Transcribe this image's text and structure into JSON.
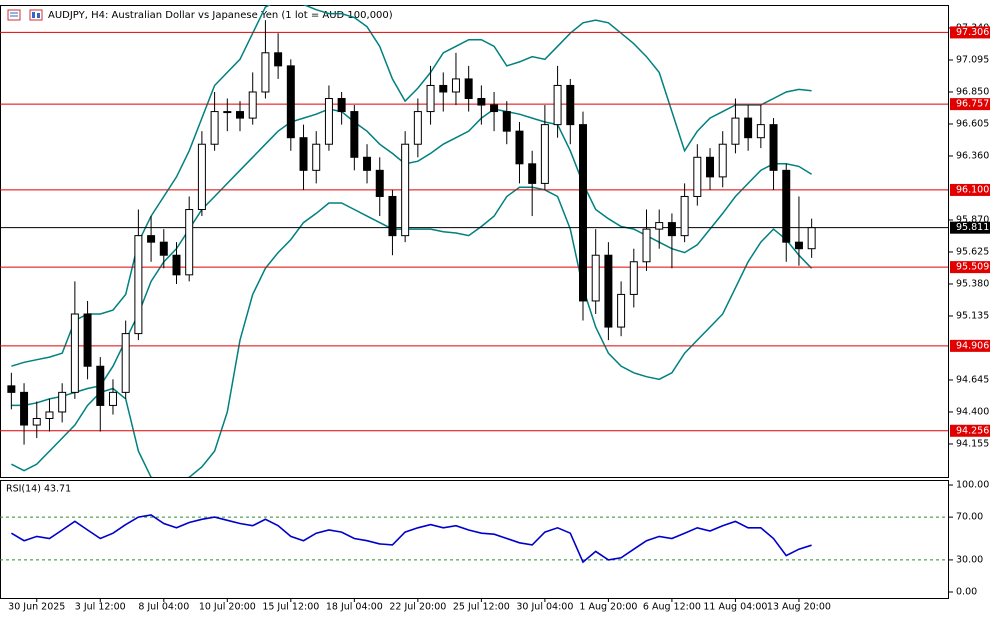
{
  "header": {
    "title": "AUDJPY, H4:  Australian Dollar vs Japanese Yen (1 lot = AUD 100,000)"
  },
  "chart_data": [
    {
      "type": "candlestick",
      "categories": [
        null,
        null,
        "30 Jun 2025",
        null,
        null,
        null,
        null,
        "3 Jul 12:00",
        null,
        null,
        null,
        null,
        "8 Jul 04:00",
        null,
        null,
        null,
        null,
        "10 Jul 20:00",
        null,
        null,
        null,
        null,
        "15 Jul 12:00",
        null,
        null,
        null,
        null,
        "18 Jul 04:00",
        null,
        null,
        null,
        null,
        "22 Jul 20:00",
        null,
        null,
        null,
        null,
        "25 Jul 12:00",
        null,
        null,
        null,
        null,
        "30 Jul 04:00",
        null,
        null,
        null,
        null,
        "1 Aug 20:00",
        null,
        null,
        null,
        null,
        "6 Aug 12:00",
        null,
        null,
        null,
        null,
        "11 Aug 04:00",
        null,
        null,
        null,
        null,
        "13 Aug 20:00",
        null
      ],
      "ohlc": [
        [
          94.6,
          94.7,
          94.42,
          94.55
        ],
        [
          94.55,
          94.62,
          94.15,
          94.3
        ],
        [
          94.3,
          94.48,
          94.2,
          94.35
        ],
        [
          94.35,
          94.5,
          94.25,
          94.4
        ],
        [
          94.4,
          94.62,
          94.32,
          94.55
        ],
        [
          94.55,
          95.4,
          94.5,
          95.15
        ],
        [
          95.15,
          95.25,
          94.65,
          94.75
        ],
        [
          94.75,
          94.82,
          94.25,
          94.45
        ],
        [
          94.45,
          94.65,
          94.38,
          94.55
        ],
        [
          94.55,
          95.1,
          94.5,
          95.0
        ],
        [
          95.0,
          95.95,
          94.95,
          95.75
        ],
        [
          95.75,
          95.9,
          95.55,
          95.7
        ],
        [
          95.7,
          95.8,
          95.5,
          95.6
        ],
        [
          95.6,
          95.7,
          95.38,
          95.45
        ],
        [
          95.45,
          96.05,
          95.4,
          95.95
        ],
        [
          95.95,
          96.55,
          95.9,
          96.45
        ],
        [
          96.45,
          96.85,
          96.4,
          96.7
        ],
        [
          96.7,
          96.8,
          96.55,
          96.7
        ],
        [
          96.7,
          96.78,
          96.55,
          96.65
        ],
        [
          96.65,
          97.0,
          96.6,
          96.85
        ],
        [
          96.85,
          97.4,
          96.8,
          97.15
        ],
        [
          97.15,
          97.3,
          96.95,
          97.05
        ],
        [
          97.05,
          97.1,
          96.4,
          96.5
        ],
        [
          96.5,
          96.6,
          96.1,
          96.25
        ],
        [
          96.25,
          96.55,
          96.15,
          96.45
        ],
        [
          96.45,
          96.9,
          96.4,
          96.8
        ],
        [
          96.8,
          96.85,
          96.6,
          96.7
        ],
        [
          96.7,
          96.75,
          96.25,
          96.35
        ],
        [
          96.35,
          96.45,
          96.15,
          96.25
        ],
        [
          96.25,
          96.35,
          95.9,
          96.05
        ],
        [
          96.05,
          96.1,
          95.6,
          95.75
        ],
        [
          95.75,
          96.55,
          95.7,
          96.45
        ],
        [
          96.45,
          96.8,
          96.35,
          96.7
        ],
        [
          96.7,
          97.05,
          96.6,
          96.9
        ],
        [
          96.9,
          97.0,
          96.7,
          96.85
        ],
        [
          96.85,
          97.15,
          96.75,
          96.95
        ],
        [
          96.95,
          97.05,
          96.7,
          96.8
        ],
        [
          96.8,
          96.9,
          96.6,
          96.75
        ],
        [
          96.75,
          96.85,
          96.55,
          96.7
        ],
        [
          96.7,
          96.78,
          96.45,
          96.55
        ],
        [
          96.55,
          96.62,
          96.15,
          96.3
        ],
        [
          96.3,
          96.4,
          95.9,
          96.15
        ],
        [
          96.15,
          96.75,
          96.1,
          96.6
        ],
        [
          96.6,
          97.05,
          96.5,
          96.9
        ],
        [
          96.9,
          96.95,
          96.45,
          96.6
        ],
        [
          96.6,
          96.7,
          95.1,
          95.25
        ],
        [
          95.25,
          95.8,
          95.15,
          95.6
        ],
        [
          95.6,
          95.7,
          94.95,
          95.05
        ],
        [
          95.05,
          95.4,
          94.98,
          95.3
        ],
        [
          95.3,
          95.65,
          95.2,
          95.55
        ],
        [
          95.55,
          95.95,
          95.48,
          95.8
        ],
        [
          95.8,
          95.95,
          95.65,
          95.85
        ],
        [
          95.85,
          95.92,
          95.5,
          95.75
        ],
        [
          95.75,
          96.15,
          95.7,
          96.05
        ],
        [
          96.05,
          96.45,
          95.98,
          96.35
        ],
        [
          96.35,
          96.42,
          96.1,
          96.2
        ],
        [
          96.2,
          96.55,
          96.12,
          96.45
        ],
        [
          96.45,
          96.8,
          96.38,
          96.65
        ],
        [
          96.65,
          96.75,
          96.4,
          96.5
        ],
        [
          96.5,
          96.75,
          96.42,
          96.6
        ],
        [
          96.6,
          96.65,
          96.1,
          96.25
        ],
        [
          96.25,
          96.3,
          95.55,
          95.7
        ],
        [
          95.7,
          96.05,
          95.52,
          95.65
        ],
        [
          95.65,
          95.88,
          95.58,
          95.811
        ]
      ],
      "bull_color": "#ffffff",
      "bear_color": "#000000",
      "bands": {
        "color": "#008080",
        "upper": [
          94.75,
          94.78,
          94.8,
          94.82,
          94.85,
          95.1,
          95.15,
          95.15,
          95.18,
          95.3,
          95.7,
          95.9,
          96.05,
          96.2,
          96.4,
          96.65,
          96.9,
          97.0,
          97.1,
          97.3,
          97.5,
          97.55,
          97.55,
          97.52,
          97.48,
          97.45,
          97.45,
          97.42,
          97.35,
          97.2,
          96.95,
          96.78,
          96.88,
          97.0,
          97.15,
          97.2,
          97.25,
          97.25,
          97.2,
          97.05,
          97.08,
          97.12,
          97.1,
          97.2,
          97.3,
          97.38,
          97.4,
          97.38,
          97.3,
          97.22,
          97.12,
          97.0,
          96.7,
          96.4,
          96.55,
          96.65,
          96.7,
          96.75,
          96.75,
          96.75,
          96.8,
          96.85,
          96.87,
          96.86
        ],
        "middle": [
          94.45,
          94.45,
          94.47,
          94.5,
          94.52,
          94.55,
          94.58,
          94.6,
          94.75,
          94.95,
          95.15,
          95.4,
          95.55,
          95.65,
          95.8,
          95.95,
          96.05,
          96.15,
          96.25,
          96.35,
          96.45,
          96.55,
          96.62,
          96.65,
          96.68,
          96.72,
          96.7,
          96.62,
          96.55,
          96.45,
          96.38,
          96.3,
          96.32,
          96.38,
          96.45,
          96.5,
          96.55,
          96.65,
          96.72,
          96.7,
          96.68,
          96.65,
          96.62,
          96.6,
          96.4,
          96.15,
          95.95,
          95.88,
          95.82,
          95.8,
          95.75,
          95.7,
          95.65,
          95.62,
          95.68,
          95.8,
          95.92,
          96.05,
          96.15,
          96.25,
          96.3,
          96.3,
          96.28,
          96.22
        ],
        "lower": [
          94.0,
          93.95,
          94.0,
          94.1,
          94.2,
          94.3,
          94.45,
          94.55,
          94.58,
          94.5,
          94.1,
          93.9,
          93.88,
          93.88,
          93.9,
          93.98,
          94.1,
          94.4,
          94.95,
          95.3,
          95.5,
          95.62,
          95.72,
          95.85,
          95.92,
          96.0,
          96.0,
          95.95,
          95.9,
          95.85,
          95.8,
          95.8,
          95.8,
          95.8,
          95.78,
          95.77,
          95.75,
          95.82,
          95.9,
          96.05,
          96.12,
          96.12,
          96.1,
          96.05,
          95.8,
          95.35,
          95.05,
          94.85,
          94.75,
          94.7,
          94.67,
          94.65,
          94.7,
          94.85,
          94.95,
          95.05,
          95.15,
          95.35,
          95.55,
          95.7,
          95.8,
          95.72,
          95.6,
          95.5
        ]
      },
      "levels": [
        97.306,
        96.757,
        {
          "value": 96.1,
          "label": "96.100"
        },
        95.509,
        94.906,
        94.256
      ],
      "level_color": "#e00000",
      "last_price": 95.811,
      "ylim": [
        93.902,
        97.516
      ],
      "yticks": [
        {
          "value": 97.34,
          "label": "97.340"
        },
        97.095,
        {
          "value": 96.85,
          "label": "96.850"
        },
        96.605,
        {
          "value": 96.36,
          "label": "96.360"
        },
        {
          "value": 95.87,
          "label": "95.870"
        },
        95.625,
        {
          "value": 95.38,
          "label": "95.380"
        },
        95.135,
        94.645,
        {
          "value": 94.4,
          "label": "94.400"
        },
        94.155
      ]
    },
    {
      "type": "line",
      "title": "RSI(14) 43.71",
      "color": "#0000cc",
      "values": [
        55,
        48,
        52,
        50,
        58,
        66,
        58,
        50,
        55,
        63,
        70,
        72,
        64,
        60,
        65,
        68,
        70,
        67,
        64,
        62,
        68,
        62,
        52,
        48,
        55,
        58,
        56,
        50,
        48,
        45,
        44,
        56,
        60,
        63,
        60,
        62,
        58,
        55,
        54,
        50,
        46,
        44,
        56,
        60,
        55,
        28,
        38,
        30,
        32,
        40,
        48,
        52,
        50,
        55,
        60,
        57,
        62,
        66,
        60,
        60,
        50,
        34,
        40,
        43.71
      ],
      "guides": [
        70,
        30
      ],
      "guide_color": "#2e8b2e",
      "ylim": [
        -5.6,
        104.7
      ],
      "yticks": [
        {
          "value": 100,
          "label": "100.00"
        },
        {
          "value": 70,
          "label": "70.00"
        },
        {
          "value": 30,
          "label": "30.00"
        },
        {
          "value": 0,
          "label": "0.00"
        }
      ]
    }
  ]
}
